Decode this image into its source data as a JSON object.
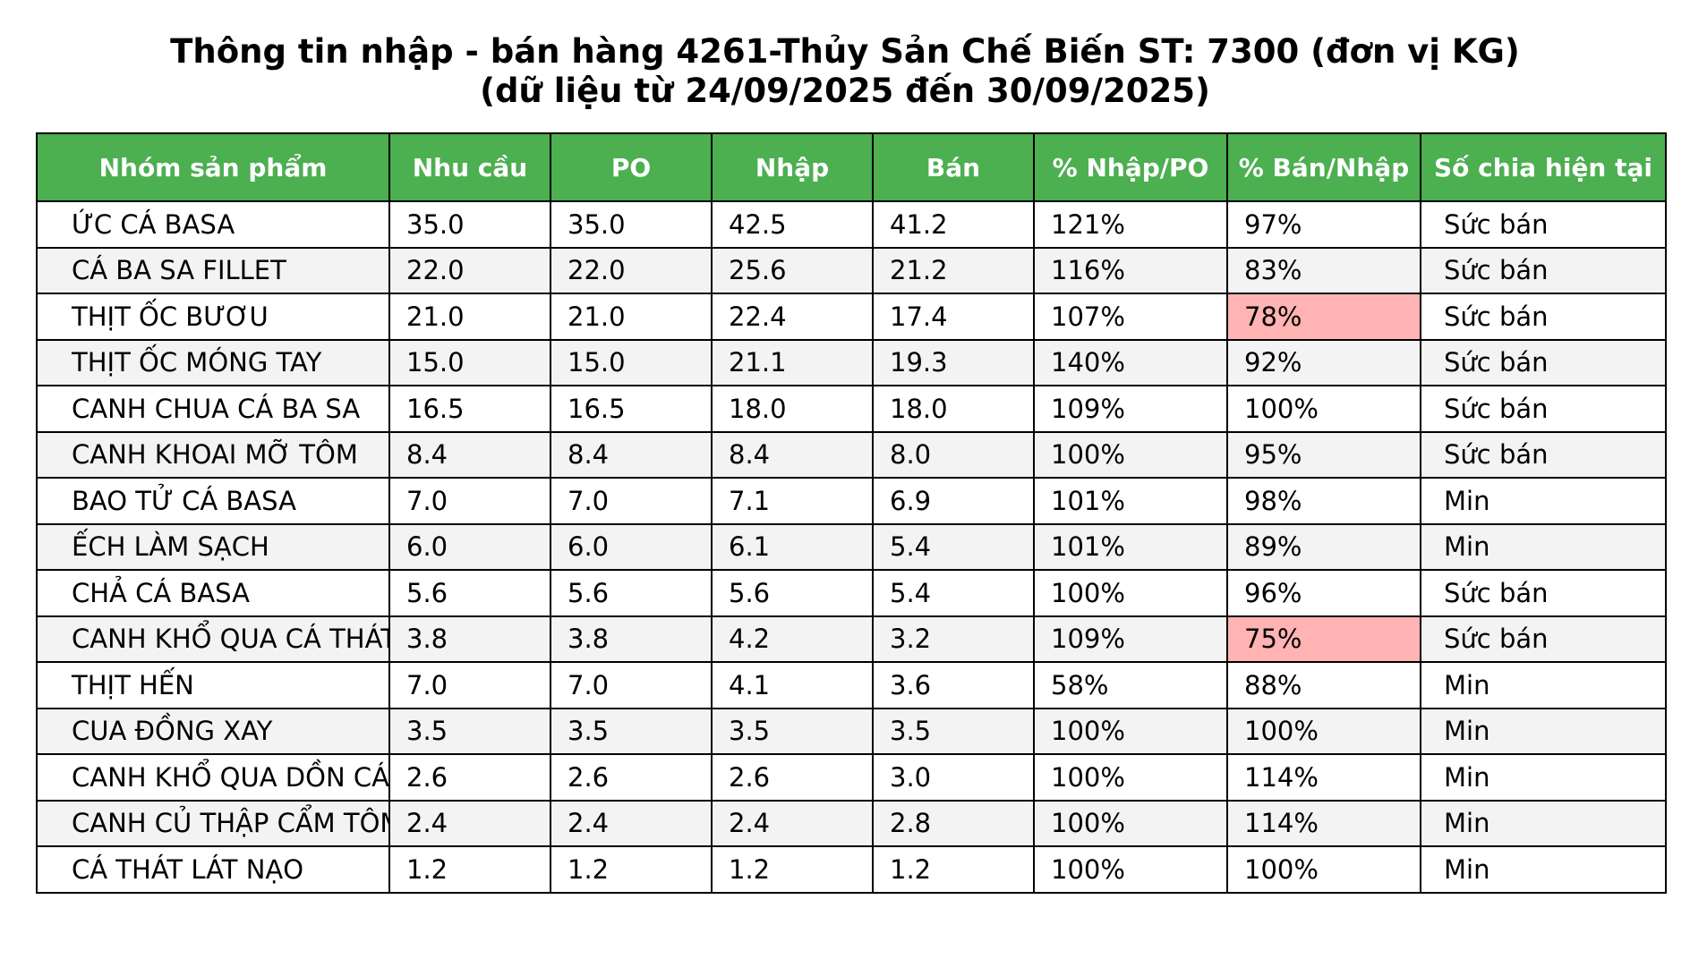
{
  "chart_data": {
    "type": "table",
    "title": "Thông tin nhập - bán hàng 4261-Thủy Sản Chế Biến ST: 7300 (đơn vị KG)",
    "subtitle": "(dữ liệu từ 24/09/2025 đến 30/09/2025)",
    "columns": [
      "Nhóm sản phẩm",
      "Nhu cầu",
      "PO",
      "Nhập",
      "Bán",
      "% Nhập/PO",
      "% Bán/Nhập",
      "Số chia hiện tại"
    ],
    "rows": [
      [
        "ỨC CÁ BASA",
        "35.0",
        "35.0",
        "42.5",
        "41.2",
        "121%",
        "97%",
        "Sức bán"
      ],
      [
        "CÁ BA SA FILLET",
        "22.0",
        "22.0",
        "25.6",
        "21.2",
        "116%",
        "83%",
        "Sức bán"
      ],
      [
        "THỊT ỐC BƯƠU",
        "21.0",
        "21.0",
        "22.4",
        "17.4",
        "107%",
        "78%",
        "Sức bán"
      ],
      [
        "THỊT ỐC MÓNG TAY",
        "15.0",
        "15.0",
        "21.1",
        "19.3",
        "140%",
        "92%",
        "Sức bán"
      ],
      [
        "CANH CHUA CÁ BA SA",
        "16.5",
        "16.5",
        "18.0",
        "18.0",
        "109%",
        "100%",
        "Sức bán"
      ],
      [
        "CANH KHOAI MỠ TÔM",
        "8.4",
        "8.4",
        "8.4",
        "8.0",
        "100%",
        "95%",
        "Sức bán"
      ],
      [
        "BAO TỬ CÁ BASA",
        "7.0",
        "7.0",
        "7.1",
        "6.9",
        "101%",
        "98%",
        "Min"
      ],
      [
        "ẾCH LÀM SẠCH",
        "6.0",
        "6.0",
        "6.1",
        "5.4",
        "101%",
        "89%",
        "Min"
      ],
      [
        "CHẢ CÁ BASA",
        "5.6",
        "5.6",
        "5.6",
        "5.4",
        "100%",
        "96%",
        "Sức bán"
      ],
      [
        "CANH KHỔ QUA CÁ THÁT LÁT",
        "3.8",
        "3.8",
        "4.2",
        "3.2",
        "109%",
        "75%",
        "Sức bán"
      ],
      [
        "THỊT HẾN",
        "7.0",
        "7.0",
        "4.1",
        "3.6",
        "58%",
        "88%",
        "Min"
      ],
      [
        "CUA ĐỒNG XAY",
        "3.5",
        "3.5",
        "3.5",
        "3.5",
        "100%",
        "100%",
        "Min"
      ],
      [
        "CANH KHỔ QUA DỒN CÁ THÁT LÁT",
        "2.6",
        "2.6",
        "2.6",
        "3.0",
        "100%",
        "114%",
        "Min"
      ],
      [
        "CANH CỦ THẬP CẨM TÔM",
        "2.4",
        "2.4",
        "2.4",
        "2.8",
        "100%",
        "114%",
        "Min"
      ],
      [
        "CÁ THÁT LÁT NẠO",
        "1.2",
        "1.2",
        "1.2",
        "1.2",
        "100%",
        "100%",
        "Min"
      ]
    ],
    "highlight_cells": [
      {
        "row": 2,
        "col": 6
      },
      {
        "row": 9,
        "col": 6
      }
    ],
    "colors": {
      "header_bg": "#4caf50",
      "header_text": "#ffffff",
      "row_alt_bg": "#f3f3f3",
      "highlight_bg": "#ffb3b3"
    }
  }
}
